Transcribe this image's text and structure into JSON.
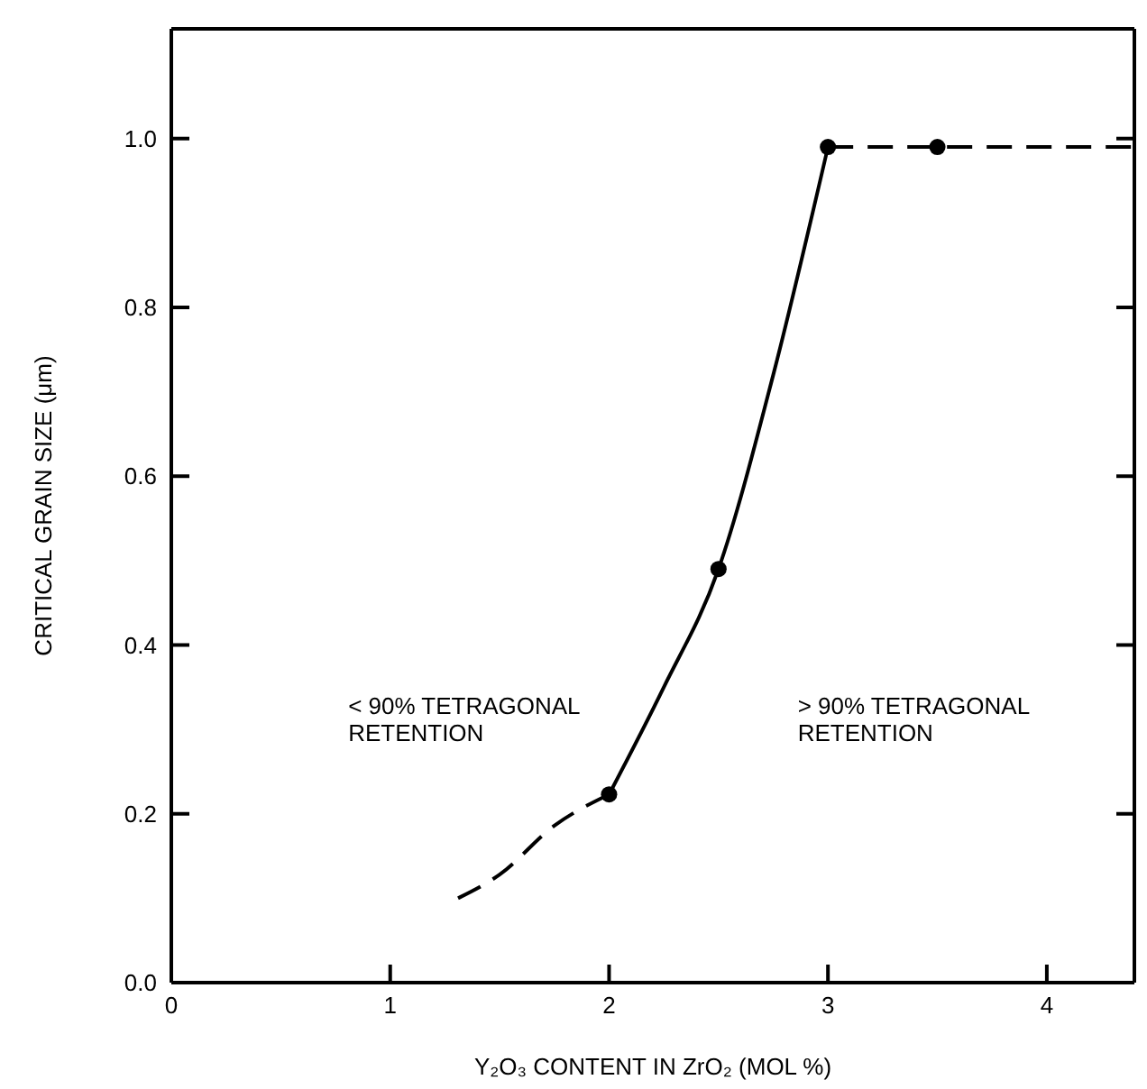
{
  "chart_data": {
    "type": "line",
    "xlabel": "Y₂O₃ CONTENT IN ZrO₂ (MOL %)",
    "ylabel": "CRITICAL GRAIN SIZE (μm)",
    "annotations": [
      "< 90% TETRAGONAL\nRETENTION",
      "> 90% TETRAGONAL\nRETENTION"
    ],
    "xlim": [
      0,
      4.4
    ],
    "xticks": [
      0,
      1,
      2,
      3,
      4
    ],
    "ylim": [
      0,
      1.13
    ],
    "yticks": [
      {
        "value": 0,
        "label": "0.0"
      },
      0.2,
      0.4,
      0.6,
      0.8,
      {
        "value": 1,
        "label": "1.0"
      }
    ],
    "grid": false,
    "series": [
      {
        "type": "line",
        "x": [
          1.31,
          1.5,
          1.75,
          2
        ],
        "values": [
          0.1,
          0.128,
          0.186,
          0.223
        ],
        "color": "#000000",
        "line_style": "dashed",
        "marker": "none"
      },
      {
        "type": "line",
        "x": [
          2,
          2.25,
          2.5,
          2.75,
          3
        ],
        "values": [
          0.223,
          0.35,
          0.49,
          0.72,
          0.99
        ],
        "color": "#000000",
        "line_style": "solid",
        "marker": "none"
      },
      {
        "type": "line",
        "x": [
          3,
          4.4
        ],
        "values": [
          0.99,
          0.99
        ],
        "color": "#000000",
        "line_style": "dashed",
        "marker": "none"
      },
      {
        "type": "scatter",
        "x": [
          2,
          2.5,
          3,
          3.5
        ],
        "values": [
          0.223,
          0.49,
          0.99,
          0.99
        ],
        "color": "#000000",
        "marker": "circle"
      }
    ]
  }
}
